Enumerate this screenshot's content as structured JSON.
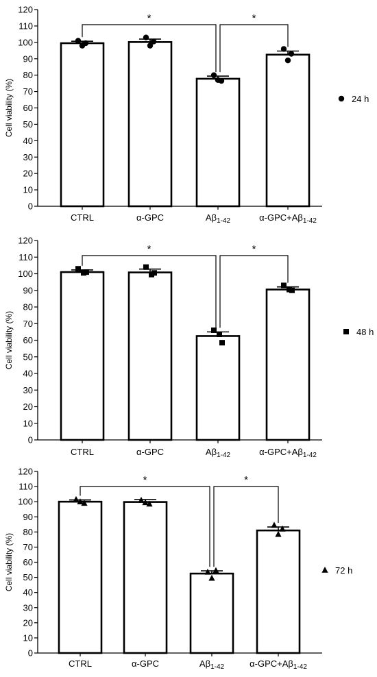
{
  "chart_data": [
    {
      "type": "bar",
      "categories": [
        "CTRL",
        "α-GPC",
        "Aβ1-42",
        "α-GPC+Aβ1-42"
      ],
      "values": [
        99.5,
        100.2,
        77.8,
        92.5
      ],
      "errors": [
        1.2,
        1.8,
        1.6,
        2.2
      ],
      "points": [
        [
          101,
          98,
          99.5
        ],
        [
          103,
          98,
          100.5
        ],
        [
          80,
          77,
          76.5
        ],
        [
          96,
          89,
          93
        ]
      ],
      "ylabel": "Cell viability (%)",
      "ylim": [
        0,
        120
      ],
      "yticks": [
        0,
        10,
        20,
        30,
        40,
        50,
        60,
        70,
        80,
        90,
        100,
        110,
        120
      ],
      "marker": "circle",
      "legend": "24 h",
      "legend_position": "right",
      "significance": [
        {
          "from": 0,
          "to": 2,
          "label": "*"
        },
        {
          "from": 2,
          "to": 3,
          "label": "*"
        }
      ]
    },
    {
      "type": "bar",
      "categories": [
        "CTRL",
        "α-GPC",
        "Aβ1-42",
        "α-GPC+Aβ1-42"
      ],
      "values": [
        101,
        100.8,
        62.5,
        90.5
      ],
      "errors": [
        1.3,
        2.0,
        2.5,
        1.6
      ],
      "points": [
        [
          103,
          100.5,
          101
        ],
        [
          104,
          99.5,
          100.5
        ],
        [
          66,
          63.5,
          58.5
        ],
        [
          93,
          90.5,
          90
        ]
      ],
      "ylabel": "Cell viability (%)",
      "ylim": [
        0,
        120
      ],
      "yticks": [
        0,
        10,
        20,
        30,
        40,
        50,
        60,
        70,
        80,
        90,
        100,
        110,
        120
      ],
      "marker": "square",
      "legend": "48 h",
      "legend_position": "right",
      "significance": [
        {
          "from": 0,
          "to": 2,
          "label": "*"
        },
        {
          "from": 2,
          "to": 3,
          "label": "*"
        }
      ]
    },
    {
      "type": "bar",
      "categories": [
        "CTRL",
        "α-GPC",
        "Aβ1-42",
        "α-GPC+Aβ1-42"
      ],
      "values": [
        100,
        99.8,
        52.5,
        81
      ],
      "errors": [
        1.2,
        1.6,
        1.8,
        2.3
      ],
      "points": [
        [
          101.5,
          99,
          100
        ],
        [
          101,
          98.5,
          99.5
        ],
        [
          53.5,
          54.5,
          49.5
        ],
        [
          84.5,
          82,
          78.5
        ]
      ],
      "ylabel": "Cell viability (%)",
      "ylim": [
        0,
        120
      ],
      "yticks": [
        0,
        10,
        20,
        30,
        40,
        50,
        60,
        70,
        80,
        90,
        100,
        110,
        120
      ],
      "marker": "triangle",
      "legend": "72 h",
      "legend_position": "right",
      "significance": [
        {
          "from": 0,
          "to": 2,
          "label": "*"
        },
        {
          "from": 2,
          "to": 3,
          "label": "*"
        }
      ]
    }
  ]
}
